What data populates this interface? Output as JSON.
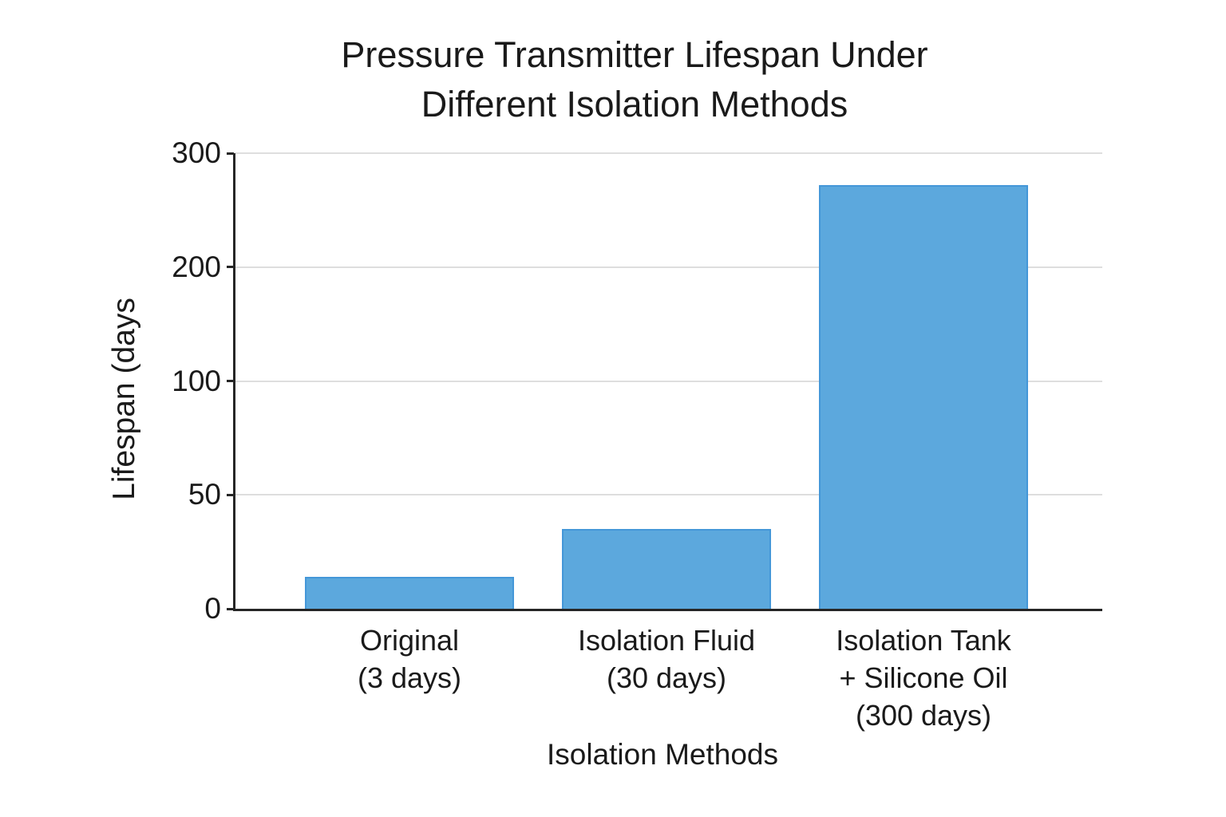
{
  "title": {
    "line1": "Pressure Transmitter Lifespan Under",
    "line2": "Different Isolation Methods"
  },
  "chart_data": {
    "type": "bar",
    "title": "Pressure Transmitter Lifespan Under Different Isolation Methods",
    "xlabel": "Isolation Methods",
    "ylabel": "Lifespan (days",
    "categories": [
      "Original\n(3 days)",
      "Isolation Fluid\n(30 days)",
      "Isolation Tank\n+ Silicone Oil\n(300 days)"
    ],
    "values": [
      3,
      30,
      300
    ],
    "values_as_drawn": [
      14,
      35,
      272
    ],
    "yticks": [
      0,
      50,
      100,
      200,
      300
    ],
    "ylim": [
      0,
      300
    ],
    "axis_note": "y-axis tick values 0,50,100,200,300 are equally spaced (non-linear scale); bars drawn at ~14, ~35 and ~272 on that scale",
    "grid": "horizontal gridlines on",
    "legend": "none",
    "bar_color": "#5ca8dd",
    "bar_edge_color": "#4497d8",
    "gridline_color": "#dedede",
    "spine_color": "#262626",
    "text_color": "#1a1a1a"
  }
}
